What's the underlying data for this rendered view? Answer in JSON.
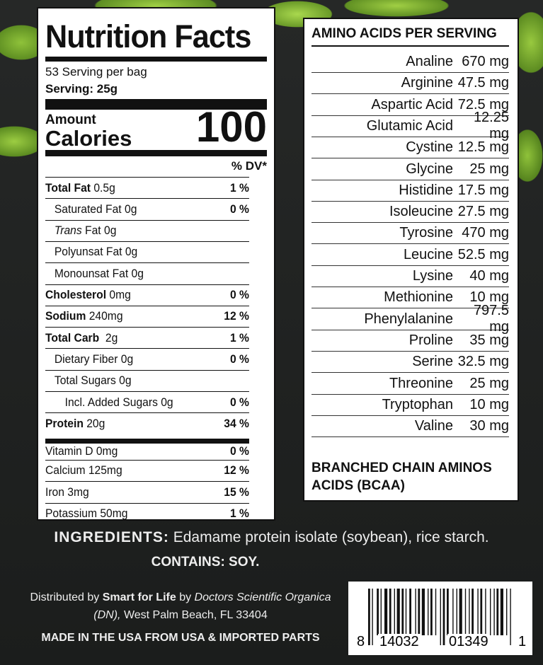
{
  "nutrition": {
    "title": "Nutrition Facts",
    "servings": "53 Serving per bag",
    "serving_size": "Serving: 25g",
    "amount": "Amount",
    "calories_label": "Calories",
    "calories": "100",
    "dv_header": "% DV*",
    "rows": [
      {
        "label": "Total Fat",
        "amount": " 0.5g",
        "dv": "1 %",
        "bold": true,
        "indent": 0
      },
      {
        "label": "Saturated Fat 0g",
        "amount": "",
        "dv": "0 %",
        "bold": false,
        "indent": 1
      },
      {
        "label": "Trans",
        "amount": " Fat 0g",
        "dv": "",
        "bold": false,
        "indent": 1,
        "italic": true
      },
      {
        "label": "Polyunsat Fat 0g",
        "amount": "",
        "dv": "",
        "bold": false,
        "indent": 1
      },
      {
        "label": "Monounsat Fat 0g",
        "amount": "",
        "dv": "",
        "bold": false,
        "indent": 1
      },
      {
        "label": "Cholesterol",
        "amount": " 0mg",
        "dv": "0 %",
        "bold": true,
        "indent": 0
      },
      {
        "label": "Sodium",
        "amount": " 240mg",
        "dv": "12 %",
        "bold": true,
        "indent": 0
      },
      {
        "label": "Total Carb",
        "amount": "  2g",
        "dv": "1 %",
        "bold": true,
        "indent": 0
      },
      {
        "label": "Dietary Fiber 0g",
        "amount": "",
        "dv": "0 %",
        "bold": false,
        "indent": 1
      },
      {
        "label": "Total Sugars 0g",
        "amount": "",
        "dv": "",
        "bold": false,
        "indent": 1
      },
      {
        "label": "Incl. Added Sugars 0g",
        "amount": "",
        "dv": "0 %",
        "bold": false,
        "indent": 2
      },
      {
        "label": "Protein",
        "amount": " 20g",
        "dv": "34 %",
        "bold": true,
        "indent": 0
      },
      {
        "label": "Vitamin D 0mg",
        "amount": "",
        "dv": "0 %",
        "bold": false,
        "indent": 0
      },
      {
        "label": "Calcium 125mg",
        "amount": "",
        "dv": "12 %",
        "bold": false,
        "indent": 0
      },
      {
        "label": "Iron 3mg",
        "amount": "",
        "dv": "15 %",
        "bold": false,
        "indent": 0
      },
      {
        "label": "Potassium 50mg",
        "amount": "",
        "dv": "1 %",
        "bold": false,
        "indent": 0
      }
    ]
  },
  "amino": {
    "title": "AMINO ACIDS PER SERVING",
    "rows": [
      {
        "name": "Analine",
        "value": "670 mg"
      },
      {
        "name": "Arginine",
        "value": "47.5 mg"
      },
      {
        "name": "Aspartic Acid",
        "value": "72.5 mg"
      },
      {
        "name": "Glutamic Acid",
        "value": "12.25 mg"
      },
      {
        "name": "Cystine",
        "value": "12.5 mg"
      },
      {
        "name": "Glycine",
        "value": "25 mg"
      },
      {
        "name": "Histidine",
        "value": "17.5 mg"
      },
      {
        "name": "Isoleucine",
        "value": "27.5 mg"
      },
      {
        "name": "Tyrosine",
        "value": "470 mg"
      },
      {
        "name": "Leucine",
        "value": "52.5 mg"
      },
      {
        "name": "Lysine",
        "value": "40 mg"
      },
      {
        "name": "Methionine",
        "value": "10 mg"
      },
      {
        "name": "Phenylalanine",
        "value": "797.5 mg"
      },
      {
        "name": "Proline",
        "value": "35 mg"
      },
      {
        "name": "Serine",
        "value": "32.5 mg"
      },
      {
        "name": "Threonine",
        "value": "25 mg"
      },
      {
        "name": "Tryptophan",
        "value": "10 mg"
      },
      {
        "name": "Valine",
        "value": "30 mg"
      }
    ],
    "bcaa": "BRANCHED CHAIN AMINOS ACIDS (BCAA)"
  },
  "ingredients": {
    "label": "INGREDIENTS:",
    "text": " Edamame protein isolate (soybean), rice starch.",
    "contains": "CONTAINS: SOY."
  },
  "distributor": {
    "pre": "Distributed by ",
    "brand": "Smart for Life",
    "mid": " by ",
    "company": "Doctors Scientific Organica (DN),",
    "address": " West Palm Beach, FL 33404"
  },
  "origin": "MADE IN THE USA FROM USA & IMPORTED PARTS",
  "barcode": {
    "first": "8",
    "left": "14032",
    "right": "01349",
    "last": "1"
  }
}
